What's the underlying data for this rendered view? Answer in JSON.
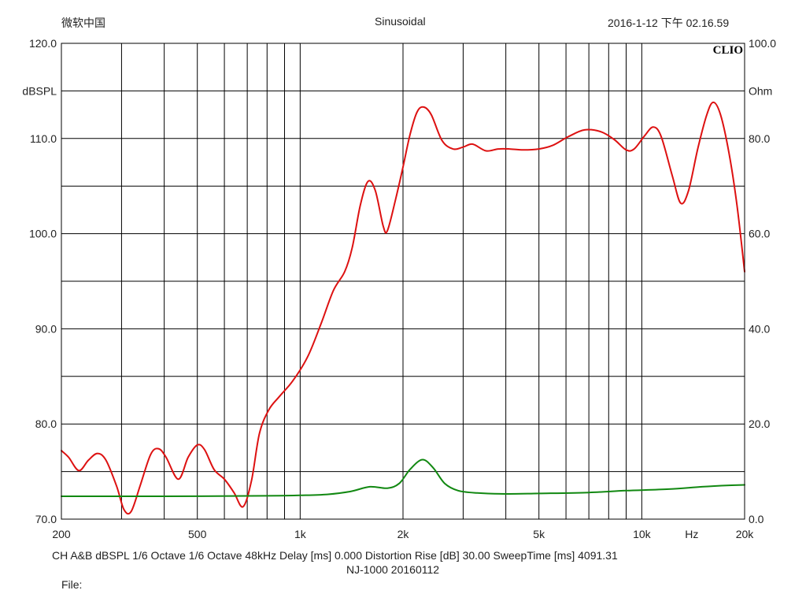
{
  "header": {
    "app_name": "微软中国",
    "mode": "Sinusoidal",
    "timestamp": "2016-1-12 下午 02.16.59"
  },
  "brand": "CLIO",
  "footer": {
    "line1": "CH A&B   dBSPL    1/6 Octave    1/6 Octave    48kHz   Delay [ms] 0.000    Distortion Rise [dB] 30.00     SweepTime [ms] 4091.31",
    "line2": "NJ-1000    20160112",
    "file_label": "File:"
  },
  "colors": {
    "spl_curve": "#dd1111",
    "impedance_curve": "#118811",
    "grid": "#000000"
  },
  "chart_data": {
    "type": "line",
    "x_scale": "log",
    "xlim": [
      200,
      20000
    ],
    "xlabel": "Hz",
    "x_ticks": [
      {
        "v": 200,
        "label": "200"
      },
      {
        "v": 500,
        "label": "500"
      },
      {
        "v": 1000,
        "label": "1k"
      },
      {
        "v": 2000,
        "label": "2k"
      },
      {
        "v": 5000,
        "label": "5k"
      },
      {
        "v": 10000,
        "label": "10k"
      },
      {
        "v": 20000,
        "label": "20k"
      }
    ],
    "ylim_left": [
      70,
      120
    ],
    "ylabel_left": "dBSPL",
    "y_ticks_left": [
      "70.0",
      "80.0",
      "90.0",
      "100.0",
      "110.0",
      "120.0"
    ],
    "ylim_right": [
      0,
      100
    ],
    "ylabel_right": "Ohm",
    "y_ticks_right": [
      "0.0",
      "20.0",
      "40.0",
      "60.0",
      "80.0",
      "100.0"
    ],
    "grid": true,
    "series": [
      {
        "axis": "left",
        "color": "#dd1111",
        "points": [
          [
            200,
            77.2
          ],
          [
            210,
            76.5
          ],
          [
            225,
            75.1
          ],
          [
            240,
            76.2
          ],
          [
            255,
            76.9
          ],
          [
            270,
            76.2
          ],
          [
            290,
            73.5
          ],
          [
            305,
            71.0
          ],
          [
            320,
            70.8
          ],
          [
            340,
            73.5
          ],
          [
            365,
            76.8
          ],
          [
            385,
            77.4
          ],
          [
            405,
            76.5
          ],
          [
            440,
            74.2
          ],
          [
            470,
            76.5
          ],
          [
            500,
            77.8
          ],
          [
            525,
            77.3
          ],
          [
            560,
            75.2
          ],
          [
            600,
            74.2
          ],
          [
            640,
            72.8
          ],
          [
            680,
            71.3
          ],
          [
            720,
            74.0
          ],
          [
            760,
            79.0
          ],
          [
            810,
            81.5
          ],
          [
            870,
            82.9
          ],
          [
            950,
            84.5
          ],
          [
            1050,
            87.0
          ],
          [
            1150,
            90.5
          ],
          [
            1250,
            94.0
          ],
          [
            1350,
            96.0
          ],
          [
            1420,
            98.5
          ],
          [
            1500,
            103.0
          ],
          [
            1580,
            105.5
          ],
          [
            1660,
            104.5
          ],
          [
            1750,
            100.8
          ],
          [
            1800,
            100.3
          ],
          [
            1900,
            103.5
          ],
          [
            2000,
            107.0
          ],
          [
            2100,
            110.5
          ],
          [
            2200,
            112.8
          ],
          [
            2300,
            113.3
          ],
          [
            2420,
            112.5
          ],
          [
            2600,
            109.8
          ],
          [
            2800,
            108.9
          ],
          [
            3000,
            109.1
          ],
          [
            3200,
            109.4
          ],
          [
            3500,
            108.7
          ],
          [
            3800,
            108.9
          ],
          [
            4100,
            108.9
          ],
          [
            4500,
            108.8
          ],
          [
            5000,
            108.9
          ],
          [
            5500,
            109.3
          ],
          [
            6100,
            110.2
          ],
          [
            6800,
            110.9
          ],
          [
            7600,
            110.7
          ],
          [
            8300,
            109.9
          ],
          [
            9000,
            108.8
          ],
          [
            9500,
            108.9
          ],
          [
            10200,
            110.3
          ],
          [
            10800,
            111.2
          ],
          [
            11400,
            110.2
          ],
          [
            12300,
            106.0
          ],
          [
            13000,
            103.2
          ],
          [
            13700,
            104.5
          ],
          [
            14600,
            109.0
          ],
          [
            15500,
            112.5
          ],
          [
            16200,
            113.8
          ],
          [
            17000,
            112.5
          ],
          [
            18000,
            108.5
          ],
          [
            19000,
            103.0
          ],
          [
            20000,
            96.0
          ]
        ]
      },
      {
        "axis": "right",
        "color": "#118811",
        "points": [
          [
            200,
            4.8
          ],
          [
            400,
            4.8
          ],
          [
            800,
            4.9
          ],
          [
            1000,
            5.0
          ],
          [
            1200,
            5.2
          ],
          [
            1400,
            5.8
          ],
          [
            1600,
            6.8
          ],
          [
            1800,
            6.5
          ],
          [
            1950,
            7.5
          ],
          [
            2100,
            10.5
          ],
          [
            2280,
            12.5
          ],
          [
            2450,
            10.8
          ],
          [
            2650,
            7.5
          ],
          [
            2900,
            6.0
          ],
          [
            3300,
            5.5
          ],
          [
            4000,
            5.3
          ],
          [
            5000,
            5.4
          ],
          [
            7000,
            5.6
          ],
          [
            9000,
            6.0
          ],
          [
            12000,
            6.3
          ],
          [
            15000,
            6.8
          ],
          [
            18000,
            7.1
          ],
          [
            20000,
            7.2
          ]
        ]
      }
    ]
  }
}
